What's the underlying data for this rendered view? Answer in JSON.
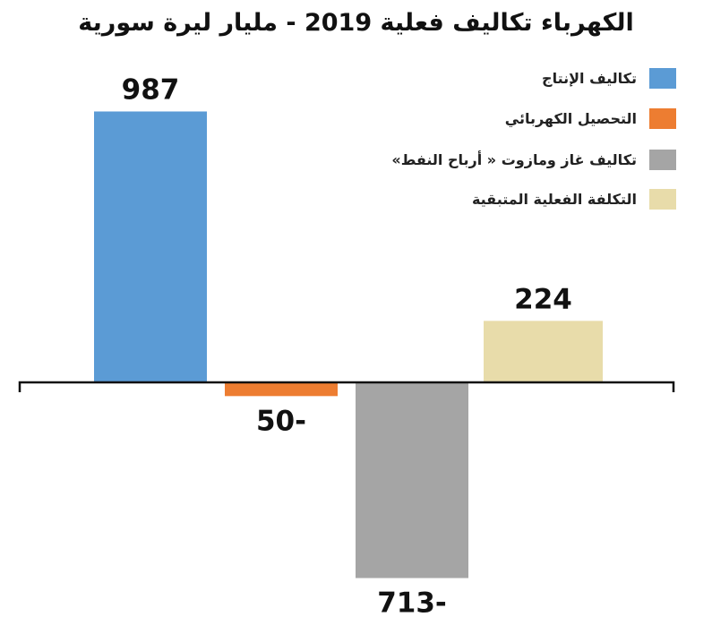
{
  "chart_data": {
    "type": "bar",
    "title": "الكهرباء تكاليف فعلية 2019 - مليار ليرة سورية",
    "xlabel": "",
    "ylabel": "",
    "ylim": [
      -713,
      987
    ],
    "grid": false,
    "legend_position": "top-right",
    "series": [
      {
        "name": "تكاليف الإنتاج",
        "value": 987,
        "label": "987",
        "color": "#5b9bd5"
      },
      {
        "name": "التحصيل الكهربائي",
        "value": -50,
        "label": "50-",
        "color": "#ed7d31"
      },
      {
        "name": "تكاليف غاز ومازوت « أرباح النفط»",
        "value": -713,
        "label": "713-",
        "color": "#a5a5a5"
      },
      {
        "name": "التكلفة الفعلية المتبقية",
        "value": 224,
        "label": "224",
        "color": "#e8dcaa"
      }
    ]
  }
}
